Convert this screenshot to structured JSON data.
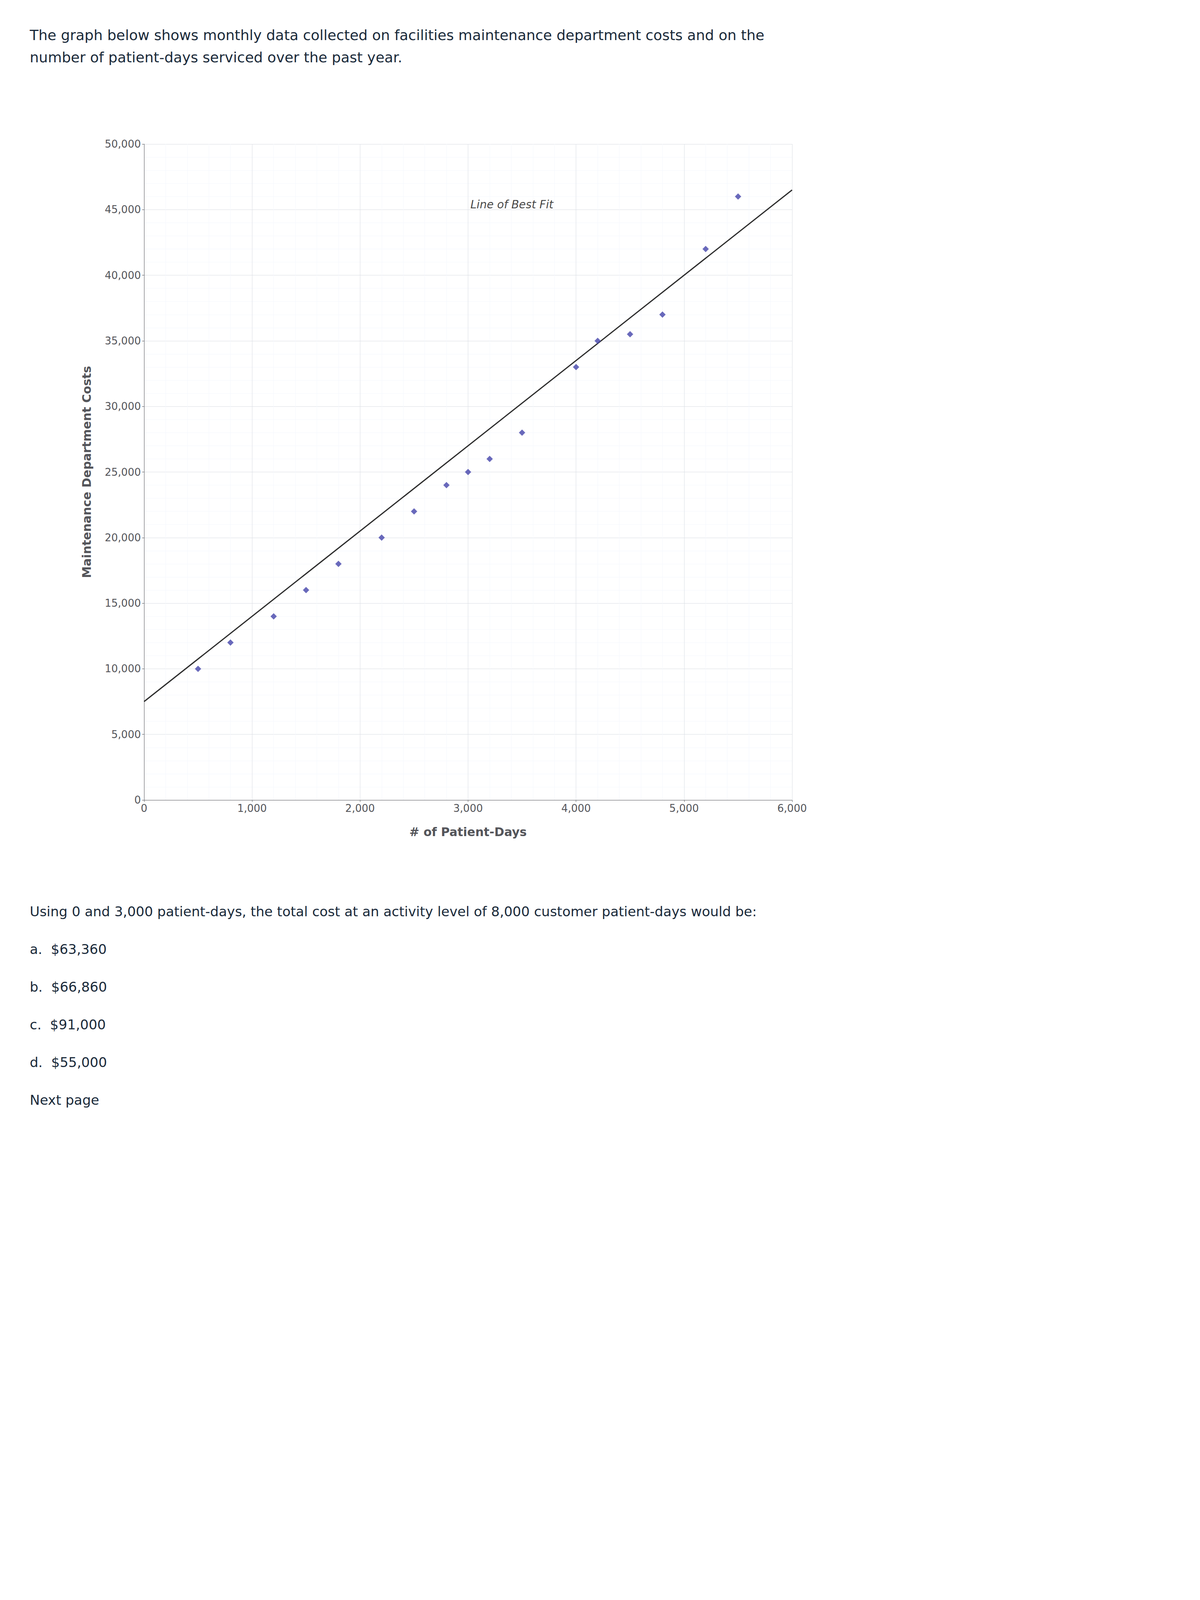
{
  "chart_data": {
    "type": "scatter",
    "subtitle": [
      "The graph below shows monthly data collected on facilities maintenance department costs and on the",
      "number of patient-days serviced over the past year."
    ],
    "xlabel": "# of Patient-Days",
    "ylabel": "Maintenance Department Costs",
    "xlim": [
      0,
      6000
    ],
    "ylim": [
      0,
      50000
    ],
    "xticks": [
      0,
      {
        "value": 1000,
        "label": "1,000"
      },
      {
        "value": 2000,
        "label": "2,000"
      },
      {
        "value": 3000,
        "label": "3,000"
      },
      {
        "value": 4000,
        "label": "4,000"
      },
      {
        "value": 5000,
        "label": "5,000"
      },
      {
        "value": 6000,
        "label": "6,000"
      }
    ],
    "yticks": [
      0,
      {
        "value": 5000,
        "label": "5,000"
      },
      {
        "value": 10000,
        "label": "10,000"
      },
      {
        "value": 15000,
        "label": "15,000"
      },
      {
        "value": 20000,
        "label": "20,000"
      },
      {
        "value": 25000,
        "label": "25,000"
      },
      {
        "value": 30000,
        "label": "30,000"
      },
      {
        "value": 35000,
        "label": "35,000"
      },
      {
        "value": 40000,
        "label": "40,000"
      },
      {
        "value": 45000,
        "label": "45,000"
      },
      {
        "value": 50000,
        "label": "50,000"
      }
    ],
    "grid": true,
    "series": [
      {
        "type": "scatter",
        "color": "#4444aa",
        "marker": "diamond",
        "x": [
          500,
          800,
          1200,
          1500,
          1800,
          2200,
          2500,
          2800,
          3000,
          3200,
          3500,
          4000,
          4200,
          4500,
          4800,
          5200,
          5500
        ],
        "values": [
          10000,
          12000,
          14000,
          16000,
          18000,
          20000,
          22000,
          24000,
          25000,
          26000,
          28000,
          33000,
          35000,
          35500,
          37000,
          42000,
          46000
        ]
      },
      {
        "type": "line",
        "color": "#2c2c2c",
        "line_style": "solid",
        "x": [
          0,
          6000
        ],
        "values": [
          7500,
          46500
        ]
      }
    ],
    "annotations": [
      {
        "text": "Line of Best Fit",
        "x": 3000,
        "y": 46000
      },
      {
        "text": "Using 0 and 3,000 patient-days, the total cost at an activity level of 8,000 customer patient-days would be:"
      },
      {
        "text": "a.  $63,360"
      },
      {
        "text": "b.  $66,860"
      },
      {
        "text": "c.  $91,000"
      },
      {
        "text": "d.  $55,000"
      },
      {
        "text": "Next page"
      }
    ]
  }
}
